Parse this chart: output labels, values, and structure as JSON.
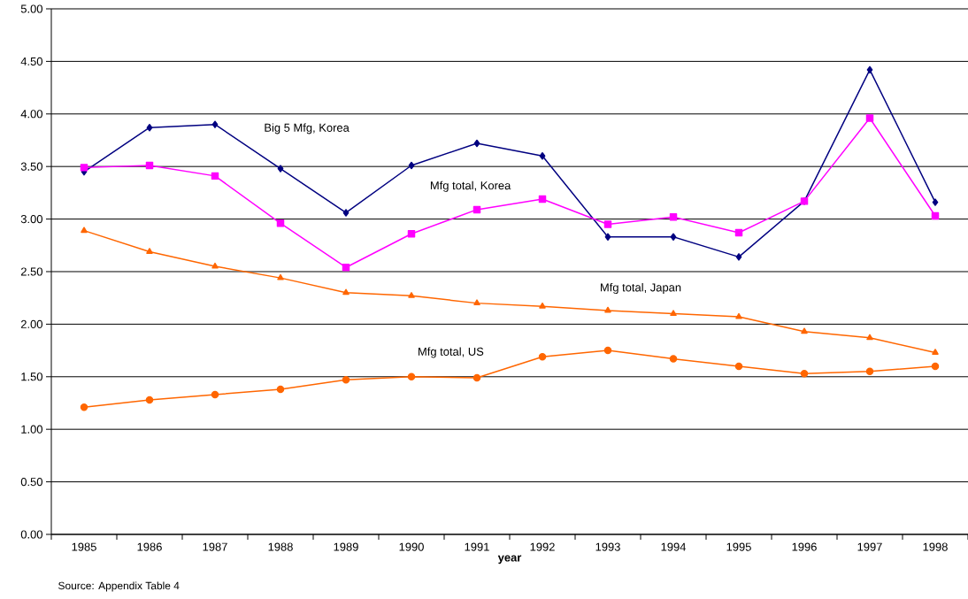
{
  "chart_data": {
    "type": "line",
    "xlabel": "year",
    "annotations": [
      "Source: Appendix Table 4"
    ],
    "categories": [
      "1985",
      "1986",
      "1987",
      "1988",
      "1989",
      "1990",
      "1991",
      "1992",
      "1993",
      "1994",
      "1995",
      "1996",
      "1997",
      "1998"
    ],
    "series": [
      {
        "name": "Big 5 Mfg, Korea",
        "color": "#000080",
        "marker": "diamond",
        "values": [
          3.45,
          3.87,
          3.9,
          3.48,
          3.06,
          3.51,
          3.72,
          3.6,
          2.83,
          2.83,
          2.64,
          3.17,
          4.42,
          3.16
        ]
      },
      {
        "name": "Mfg total, Korea",
        "color": "#ff00ff",
        "marker": "square",
        "values": [
          3.49,
          3.51,
          3.41,
          2.96,
          2.54,
          2.86,
          3.09,
          3.19,
          2.95,
          3.02,
          2.87,
          3.17,
          3.96,
          3.03
        ]
      },
      {
        "name": "Mfg total, Japan",
        "color": "#ff6600",
        "marker": "triangle",
        "values": [
          2.89,
          2.69,
          2.55,
          2.44,
          2.3,
          2.27,
          2.2,
          2.17,
          2.13,
          2.1,
          2.07,
          1.93,
          1.87,
          1.73
        ]
      },
      {
        "name": "Mfg total, US",
        "color": "#ff6600",
        "marker": "circle",
        "values": [
          1.21,
          1.28,
          1.33,
          1.38,
          1.47,
          1.5,
          1.49,
          1.69,
          1.75,
          1.67,
          1.6,
          1.53,
          1.55,
          1.6
        ]
      }
    ],
    "ylim": [
      0,
      5
    ],
    "yticks": [
      {
        "value": 0,
        "label": "0.00"
      },
      {
        "value": 0.5,
        "label": "0.50"
      },
      {
        "value": 1,
        "label": "1.00"
      },
      {
        "value": 1.5,
        "label": "1.50"
      },
      {
        "value": 2,
        "label": "2.00"
      },
      {
        "value": 2.5,
        "label": "2.50"
      },
      {
        "value": 3,
        "label": "3.00"
      },
      {
        "value": 3.5,
        "label": "3.50"
      },
      {
        "value": 4,
        "label": "4.00"
      },
      {
        "value": 4.5,
        "label": "4.50"
      },
      {
        "value": 5,
        "label": "5.00"
      }
    ],
    "grid": "y",
    "line_style": "solid"
  }
}
